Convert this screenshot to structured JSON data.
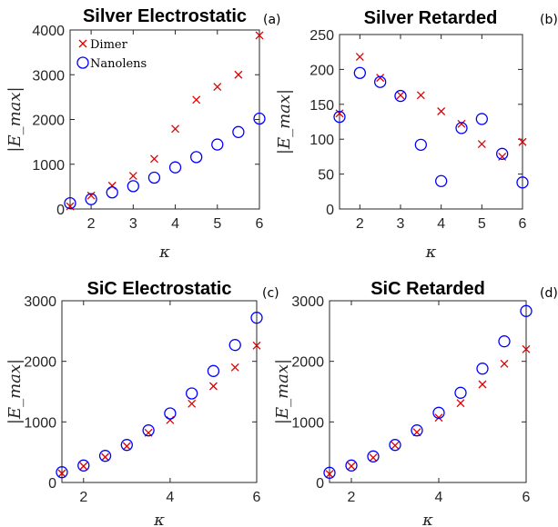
{
  "colors": {
    "dimer": "#e00000",
    "nanolens": "#0000ff",
    "axis": "#262626"
  },
  "chart_data": [
    {
      "type": "scatter",
      "title": "Silver Electrostatic",
      "panel_label": "(a)",
      "xlabel": "κ",
      "ylabel": "|E_max|",
      "xlim": [
        1.5,
        6
      ],
      "ylim": [
        0,
        4000
      ],
      "xticks": [
        2,
        3,
        4,
        5,
        6
      ],
      "yticks": [
        0,
        1000,
        2000,
        3000,
        4000
      ],
      "legend": {
        "placement": "top-left",
        "entries": [
          "Dimer",
          "Nanolens"
        ]
      },
      "series": [
        {
          "name": "Dimer",
          "marker": "x",
          "x": [
            1.5,
            2,
            2.5,
            3,
            3.5,
            4,
            4.5,
            5,
            5.5,
            6
          ],
          "y": [
            60,
            300,
            520,
            740,
            1120,
            1790,
            2440,
            2730,
            3000,
            3880
          ]
        },
        {
          "name": "Nanolens",
          "marker": "o",
          "x": [
            1.5,
            2,
            2.5,
            3,
            3.5,
            4,
            4.5,
            5,
            5.5,
            6
          ],
          "y": [
            130,
            220,
            370,
            510,
            700,
            930,
            1160,
            1440,
            1720,
            2020
          ]
        }
      ]
    },
    {
      "type": "scatter",
      "title": "Silver Retarded",
      "panel_label": "(b)",
      "xlabel": "κ",
      "ylabel": "|E_max|",
      "xlim": [
        1.5,
        6
      ],
      "ylim": [
        0,
        250
      ],
      "xticks": [
        2,
        3,
        4,
        5,
        6
      ],
      "yticks": [
        0,
        50,
        100,
        150,
        200,
        250
      ],
      "series": [
        {
          "name": "Dimer",
          "marker": "x",
          "x": [
            1.5,
            2,
            2.5,
            3,
            3.5,
            4,
            4.5,
            5,
            5.5,
            6
          ],
          "y": [
            137,
            218,
            188,
            163,
            163,
            140,
            122,
            93,
            75,
            96
          ]
        },
        {
          "name": "Nanolens",
          "marker": "o",
          "x": [
            1.5,
            2,
            2.5,
            3,
            3.5,
            4,
            4.5,
            5,
            5.5,
            6
          ],
          "y": [
            132,
            195,
            182,
            162,
            92,
            40,
            116,
            129,
            79,
            38
          ]
        }
      ]
    },
    {
      "type": "scatter",
      "title": "SiC Electrostatic",
      "panel_label": "(c)",
      "xlabel": "κ",
      "ylabel": "|E_max|",
      "xlim": [
        1.5,
        6
      ],
      "ylim": [
        0,
        3000
      ],
      "xticks": [
        2,
        4,
        6
      ],
      "yticks": [
        0,
        1000,
        2000,
        3000
      ],
      "series": [
        {
          "name": "Dimer",
          "marker": "x",
          "x": [
            1.5,
            2,
            2.5,
            3,
            3.5,
            4,
            4.5,
            5,
            5.5,
            6
          ],
          "y": [
            150,
            270,
            420,
            600,
            820,
            1030,
            1300,
            1590,
            1900,
            2260
          ]
        },
        {
          "name": "Nanolens",
          "marker": "o",
          "x": [
            1.5,
            2,
            2.5,
            3,
            3.5,
            4,
            4.5,
            5,
            5.5,
            6
          ],
          "y": [
            170,
            280,
            440,
            620,
            860,
            1140,
            1470,
            1840,
            2270,
            2720
          ]
        }
      ]
    },
    {
      "type": "scatter",
      "title": "SiC Retarded",
      "panel_label": "(d)",
      "xlabel": "κ",
      "ylabel": "|E_max|",
      "xlim": [
        1.5,
        6
      ],
      "ylim": [
        0,
        3000
      ],
      "xticks": [
        2,
        4,
        6
      ],
      "yticks": [
        0,
        1000,
        2000,
        3000
      ],
      "series": [
        {
          "name": "Dimer",
          "marker": "x",
          "x": [
            1.5,
            2,
            2.5,
            3,
            3.5,
            4,
            4.5,
            5,
            5.5,
            6
          ],
          "y": [
            140,
            270,
            410,
            610,
            830,
            1070,
            1310,
            1620,
            1960,
            2200
          ]
        },
        {
          "name": "Nanolens",
          "marker": "o",
          "x": [
            1.5,
            2,
            2.5,
            3,
            3.5,
            4,
            4.5,
            5,
            5.5,
            6
          ],
          "y": [
            160,
            280,
            430,
            620,
            860,
            1150,
            1480,
            1880,
            2330,
            2830
          ]
        }
      ]
    }
  ]
}
